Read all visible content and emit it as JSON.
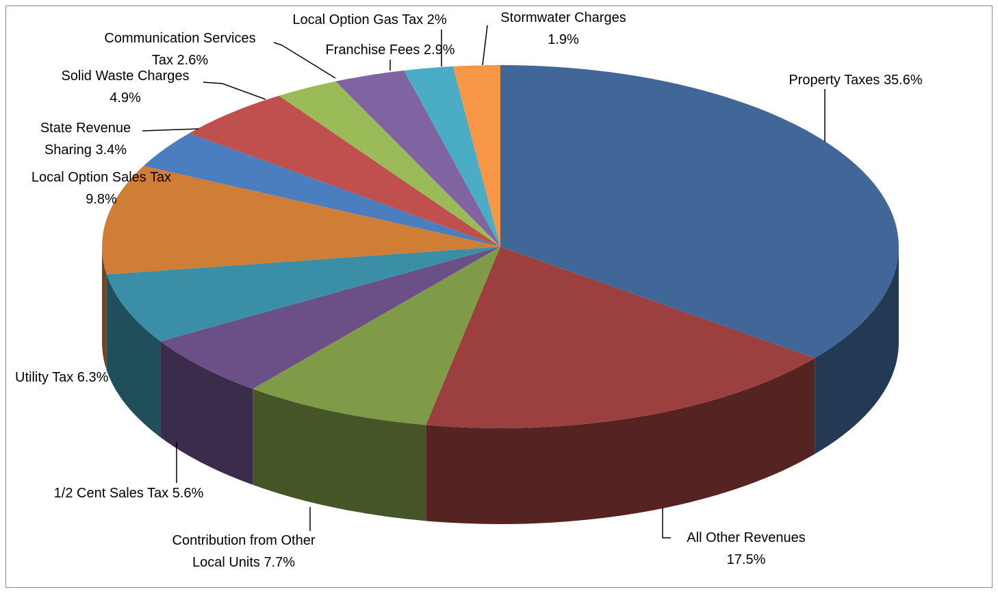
{
  "chart_data": {
    "type": "pie3d",
    "categories": [
      "Property Taxes",
      "All Other Revenues",
      "Contribution from Other Local Units",
      "1/2 Cent Sales Tax",
      "Utility Tax",
      "Local Option Sales Tax",
      "State Revenue Sharing",
      "Solid Waste Charges",
      "Communication Services Tax",
      "Franchise Fees",
      "Local Option Gas Tax",
      "Stormwater Charges"
    ],
    "values": [
      35.6,
      17.5,
      7.7,
      5.6,
      6.3,
      9.8,
      3.4,
      4.9,
      2.6,
      2.9,
      2,
      1.9
    ],
    "value_labels": [
      "35.6%",
      "17.5%",
      "7.7%",
      "5.6%",
      "6.3%",
      "9.8%",
      "3.4%",
      "4.9%",
      "2.6%",
      "2.9%",
      "2%",
      "1.9%"
    ],
    "colors": [
      "#416799",
      "#9b403e",
      "#809b48",
      "#6a5087",
      "#3a8fa6",
      "#d07d36",
      "#4a7ebf",
      "#c0504d",
      "#9bbb59",
      "#8064a2",
      "#4bacc6",
      "#f79646"
    ]
  }
}
